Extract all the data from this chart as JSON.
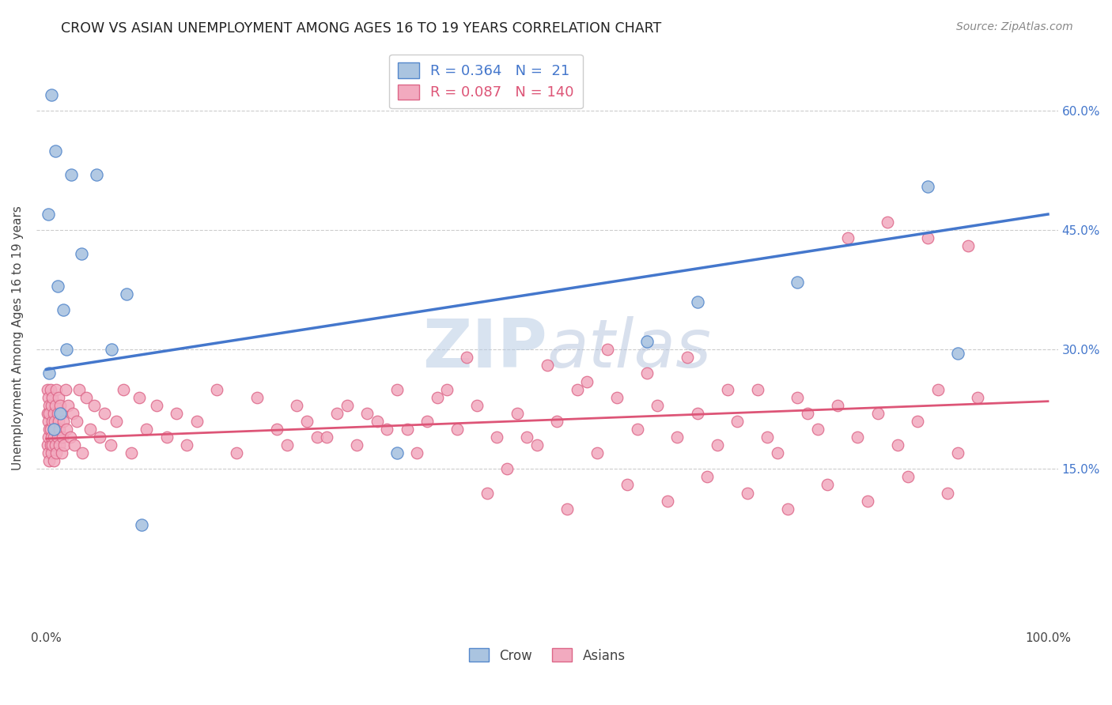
{
  "title": "CROW VS ASIAN UNEMPLOYMENT AMONG AGES 16 TO 19 YEARS CORRELATION CHART",
  "source": "Source: ZipAtlas.com",
  "ylabel": "Unemployment Among Ages 16 to 19 years",
  "xlim": [
    -0.01,
    1.01
  ],
  "ylim": [
    -0.05,
    0.68
  ],
  "crow_color_edge": "#5588cc",
  "crow_color_fill": "#aac4e0",
  "asian_color_edge": "#dd6688",
  "asian_color_fill": "#f2aabf",
  "crow_line_color": "#4477cc",
  "asian_line_color": "#dd5577",
  "legend_color_blue": "#4477cc",
  "legend_color_pink": "#dd5577",
  "watermark_color": "#c8d8ee",
  "crow_line_x": [
    0.0,
    1.0
  ],
  "crow_line_y": [
    0.275,
    0.47
  ],
  "asian_line_x": [
    0.0,
    1.0
  ],
  "asian_line_y": [
    0.188,
    0.235
  ],
  "ytick_vals": [
    0.15,
    0.3,
    0.45,
    0.6
  ],
  "ytick_labels": [
    "15.0%",
    "30.0%",
    "45.0%",
    "60.0%"
  ],
  "crow_x": [
    0.002,
    0.003,
    0.005,
    0.007,
    0.009,
    0.011,
    0.014,
    0.017,
    0.02,
    0.025,
    0.035,
    0.05,
    0.065,
    0.08,
    0.095,
    0.35,
    0.6,
    0.65,
    0.75,
    0.88,
    0.91
  ],
  "crow_y": [
    0.47,
    0.27,
    0.62,
    0.2,
    0.55,
    0.38,
    0.22,
    0.35,
    0.3,
    0.52,
    0.42,
    0.52,
    0.3,
    0.37,
    0.08,
    0.17,
    0.31,
    0.36,
    0.385,
    0.505,
    0.295
  ],
  "asian_x": [
    0.001,
    0.001,
    0.001,
    0.002,
    0.002,
    0.002,
    0.002,
    0.003,
    0.003,
    0.003,
    0.003,
    0.004,
    0.004,
    0.004,
    0.005,
    0.005,
    0.005,
    0.006,
    0.006,
    0.006,
    0.007,
    0.007,
    0.007,
    0.008,
    0.008,
    0.009,
    0.009,
    0.01,
    0.01,
    0.011,
    0.011,
    0.012,
    0.012,
    0.013,
    0.013,
    0.014,
    0.015,
    0.015,
    0.016,
    0.017,
    0.018,
    0.019,
    0.02,
    0.022,
    0.024,
    0.026,
    0.028,
    0.03,
    0.033,
    0.036,
    0.04,
    0.044,
    0.048,
    0.053,
    0.058,
    0.064,
    0.07,
    0.077,
    0.085,
    0.093,
    0.1,
    0.11,
    0.12,
    0.13,
    0.14,
    0.15,
    0.17,
    0.19,
    0.21,
    0.23,
    0.25,
    0.27,
    0.29,
    0.31,
    0.33,
    0.35,
    0.37,
    0.39,
    0.41,
    0.43,
    0.45,
    0.47,
    0.49,
    0.51,
    0.53,
    0.55,
    0.57,
    0.59,
    0.61,
    0.63,
    0.65,
    0.67,
    0.69,
    0.71,
    0.73,
    0.75,
    0.77,
    0.79,
    0.81,
    0.83,
    0.85,
    0.87,
    0.89,
    0.91,
    0.93,
    0.5,
    0.54,
    0.56,
    0.6,
    0.64,
    0.68,
    0.72,
    0.76,
    0.8,
    0.84,
    0.88,
    0.92,
    0.4,
    0.42,
    0.46,
    0.48,
    0.44,
    0.52,
    0.58,
    0.62,
    0.66,
    0.7,
    0.74,
    0.78,
    0.82,
    0.86,
    0.9,
    0.36,
    0.38,
    0.32,
    0.34,
    0.28,
    0.3,
    0.26,
    0.24
  ],
  "asian_y": [
    0.22,
    0.18,
    0.25,
    0.19,
    0.21,
    0.24,
    0.17,
    0.2,
    0.23,
    0.16,
    0.22,
    0.18,
    0.25,
    0.2,
    0.17,
    0.23,
    0.19,
    0.21,
    0.18,
    0.24,
    0.22,
    0.19,
    0.16,
    0.21,
    0.2,
    0.23,
    0.18,
    0.25,
    0.17,
    0.22,
    0.19,
    0.21,
    0.24,
    0.18,
    0.2,
    0.23,
    0.17,
    0.22,
    0.19,
    0.21,
    0.18,
    0.25,
    0.2,
    0.23,
    0.19,
    0.22,
    0.18,
    0.21,
    0.25,
    0.17,
    0.24,
    0.2,
    0.23,
    0.19,
    0.22,
    0.18,
    0.21,
    0.25,
    0.17,
    0.24,
    0.2,
    0.23,
    0.19,
    0.22,
    0.18,
    0.21,
    0.25,
    0.17,
    0.24,
    0.2,
    0.23,
    0.19,
    0.22,
    0.18,
    0.21,
    0.25,
    0.17,
    0.24,
    0.2,
    0.23,
    0.19,
    0.22,
    0.18,
    0.21,
    0.25,
    0.17,
    0.24,
    0.2,
    0.23,
    0.19,
    0.22,
    0.18,
    0.21,
    0.25,
    0.17,
    0.24,
    0.2,
    0.23,
    0.19,
    0.22,
    0.18,
    0.21,
    0.25,
    0.17,
    0.24,
    0.28,
    0.26,
    0.3,
    0.27,
    0.29,
    0.25,
    0.19,
    0.22,
    0.44,
    0.46,
    0.44,
    0.43,
    0.25,
    0.29,
    0.15,
    0.19,
    0.12,
    0.1,
    0.13,
    0.11,
    0.14,
    0.12,
    0.1,
    0.13,
    0.11,
    0.14,
    0.12,
    0.2,
    0.21,
    0.22,
    0.2,
    0.19,
    0.23,
    0.21,
    0.18
  ]
}
